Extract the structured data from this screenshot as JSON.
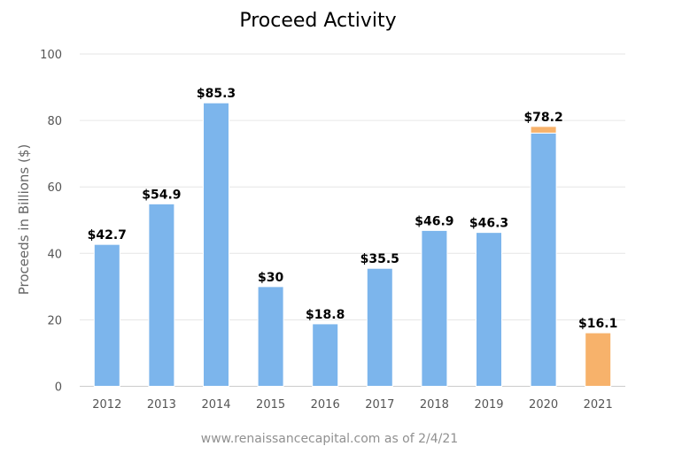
{
  "chart_data": {
    "type": "bar",
    "title": "Proceed Activity",
    "ylabel": "Proceeds in Billions ($)",
    "xlabel": "",
    "ylim": [
      0,
      100
    ],
    "yticks": [
      0,
      20,
      40,
      60,
      80,
      100
    ],
    "grid": true,
    "categories": [
      "2012",
      "2013",
      "2014",
      "2015",
      "2016",
      "2017",
      "2018",
      "2019",
      "2020",
      "2021"
    ],
    "series": [
      {
        "color": "#7cb5ec",
        "values": [
          42.7,
          54.9,
          85.3,
          30,
          18.8,
          35.5,
          46.9,
          46.3,
          76.2,
          0
        ]
      },
      {
        "color": "#f7b26b",
        "values": [
          0,
          0,
          0,
          0,
          0,
          0,
          0,
          0,
          2.0,
          16.1
        ]
      }
    ],
    "data_labels": [
      "$42.7",
      "$54.9",
      "$85.3",
      "$30",
      "$18.8",
      "$35.5",
      "$46.9",
      "$46.3",
      "$78.2",
      "$16.1"
    ],
    "stacked": true
  },
  "credit": "www.renaissancecapital.com as of 2/4/21"
}
